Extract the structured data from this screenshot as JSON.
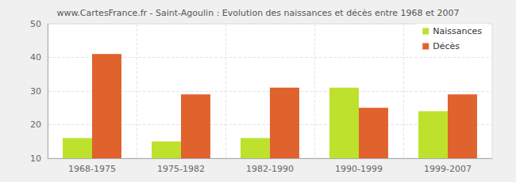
{
  "chart_data": {
    "type": "bar",
    "title": "www.CartesFrance.fr - Saint-Agoulin : Evolution des naissances et décès entre 1968 et 2007",
    "categories": [
      "1968-1975",
      "1975-1982",
      "1982-1990",
      "1990-1999",
      "1999-2007"
    ],
    "series": [
      {
        "name": "Naissances",
        "color": "#bde12d",
        "values": [
          16,
          15,
          16,
          31,
          24
        ]
      },
      {
        "name": "Décès",
        "color": "#e0622d",
        "values": [
          41,
          29,
          31,
          25,
          29
        ]
      }
    ],
    "ylim": [
      10,
      50
    ],
    "yticks": [
      10,
      20,
      30,
      40,
      50
    ],
    "grid": true,
    "legend": "top-right"
  }
}
